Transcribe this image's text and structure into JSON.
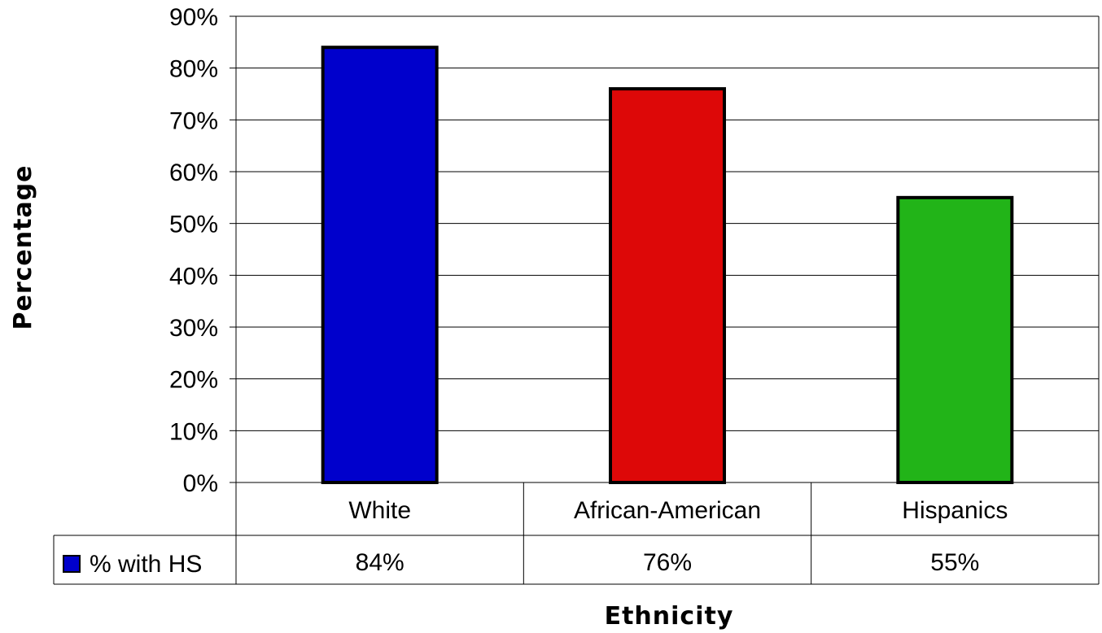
{
  "chart_data": {
    "type": "bar",
    "title": "",
    "xlabel": "Ethnicity",
    "ylabel": "Percentage",
    "categories": [
      "White",
      "African-American",
      "Hispanics"
    ],
    "series": [
      {
        "name": "% with HS",
        "values": [
          84,
          76,
          55
        ],
        "value_labels": [
          "84%",
          "76%",
          "55%"
        ]
      }
    ],
    "bar_colors": [
      "#0000CC",
      "#DD0808",
      "#22B418"
    ],
    "legend_marker_color": "#0000CC",
    "ylim": [
      0,
      90
    ],
    "yticks": [
      0,
      10,
      20,
      30,
      40,
      50,
      60,
      70,
      80,
      90
    ],
    "ytick_labels": [
      "0%",
      "10%",
      "20%",
      "30%",
      "40%",
      "50%",
      "60%",
      "70%",
      "80%",
      "90%"
    ],
    "grid": true,
    "data_table": true
  }
}
